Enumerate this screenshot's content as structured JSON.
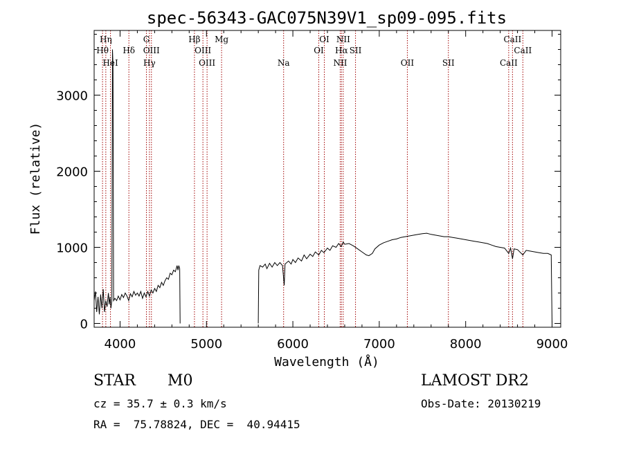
{
  "chart_data": {
    "type": "line",
    "title": "spec-56343-GAC075N39V1_sp09-095.fits",
    "xlabel": "Wavelength (Å)",
    "ylabel": "Flux (relative)",
    "xlim": [
      3700,
      9100
    ],
    "ylim": [
      -50,
      3850
    ],
    "xticks": [
      4000,
      5000,
      6000,
      7000,
      8000,
      9000
    ],
    "yticks": [
      0,
      1000,
      2000,
      3000
    ],
    "grid": false,
    "lines": [
      {
        "name": "Hη",
        "wl": 3835,
        "row": 0
      },
      {
        "name": "Hθ",
        "wl": 3797,
        "row": 1
      },
      {
        "name": "HeI",
        "wl": 3889,
        "row": 2
      },
      {
        "name": "Hδ",
        "wl": 4102,
        "row": 1
      },
      {
        "name": "G",
        "wl": 4305,
        "row": 0
      },
      {
        "name": "OIII",
        "wl": 4363,
        "row": 1
      },
      {
        "name": "Hγ",
        "wl": 4340,
        "row": 2
      },
      {
        "name": "Hβ",
        "wl": 4861,
        "row": 0
      },
      {
        "name": "OIII",
        "wl": 4959,
        "row": 1
      },
      {
        "name": "OIII",
        "wl": 5007,
        "row": 2
      },
      {
        "name": "Mg",
        "wl": 5175,
        "row": 0
      },
      {
        "name": "Na",
        "wl": 5893,
        "row": 2
      },
      {
        "name": "OI",
        "wl": 6364,
        "row": 0
      },
      {
        "name": "OI",
        "wl": 6300,
        "row": 1
      },
      {
        "name": "NII",
        "wl": 6583,
        "row": 0
      },
      {
        "name": "Hα",
        "wl": 6563,
        "row": 1
      },
      {
        "name": "SII",
        "wl": 6725,
        "row": 1
      },
      {
        "name": "NII",
        "wl": 6548,
        "row": 2
      },
      {
        "name": "OII",
        "wl": 7325,
        "row": 2
      },
      {
        "name": "SII",
        "wl": 7800,
        "row": 2
      },
      {
        "name": "CaII",
        "wl": 8542,
        "row": 0
      },
      {
        "name": "CaII",
        "wl": 8662,
        "row": 1
      },
      {
        "name": "CaII",
        "wl": 8498,
        "row": 2
      }
    ],
    "spectrum_segments": [
      [
        [
          3700,
          300
        ],
        [
          3715,
          420
        ],
        [
          3730,
          150
        ],
        [
          3745,
          350
        ],
        [
          3760,
          120
        ],
        [
          3775,
          380
        ],
        [
          3790,
          200
        ],
        [
          3805,
          450
        ],
        [
          3820,
          150
        ],
        [
          3835,
          300
        ],
        [
          3850,
          220
        ],
        [
          3865,
          400
        ],
        [
          3875,
          250
        ],
        [
          3885,
          350
        ],
        [
          3895,
          200
        ],
        [
          3905,
          320
        ],
        [
          3912,
          3600
        ],
        [
          3918,
          3420
        ],
        [
          3925,
          300
        ],
        [
          3940,
          330
        ],
        [
          3960,
          300
        ],
        [
          3980,
          360
        ],
        [
          4000,
          310
        ],
        [
          4020,
          380
        ],
        [
          4040,
          340
        ],
        [
          4060,
          400
        ],
        [
          4080,
          360
        ],
        [
          4100,
          300
        ],
        [
          4120,
          390
        ],
        [
          4140,
          350
        ],
        [
          4160,
          420
        ],
        [
          4180,
          370
        ],
        [
          4200,
          400
        ],
        [
          4220,
          360
        ],
        [
          4240,
          420
        ],
        [
          4260,
          330
        ],
        [
          4280,
          400
        ],
        [
          4300,
          350
        ],
        [
          4320,
          420
        ],
        [
          4340,
          360
        ],
        [
          4360,
          440
        ],
        [
          4380,
          400
        ],
        [
          4400,
          460
        ],
        [
          4420,
          420
        ],
        [
          4440,
          500
        ],
        [
          4460,
          470
        ],
        [
          4480,
          540
        ],
        [
          4500,
          500
        ],
        [
          4520,
          560
        ],
        [
          4540,
          600
        ],
        [
          4560,
          580
        ],
        [
          4580,
          660
        ],
        [
          4600,
          640
        ],
        [
          4620,
          700
        ],
        [
          4640,
          680
        ],
        [
          4660,
          760
        ],
        [
          4670,
          700
        ],
        [
          4680,
          760
        ],
        [
          4690,
          720
        ],
        [
          4695,
          0
        ]
      ],
      [
        [
          5600,
          0
        ],
        [
          5605,
          700
        ],
        [
          5620,
          760
        ],
        [
          5650,
          740
        ],
        [
          5680,
          780
        ],
        [
          5700,
          720
        ],
        [
          5730,
          790
        ],
        [
          5760,
          740
        ],
        [
          5790,
          800
        ],
        [
          5820,
          760
        ],
        [
          5850,
          800
        ],
        [
          5880,
          760
        ],
        [
          5900,
          500
        ],
        [
          5910,
          780
        ],
        [
          5950,
          820
        ],
        [
          5980,
          780
        ],
        [
          6000,
          840
        ],
        [
          6030,
          800
        ],
        [
          6060,
          860
        ],
        [
          6100,
          820
        ],
        [
          6130,
          900
        ],
        [
          6160,
          850
        ],
        [
          6200,
          910
        ],
        [
          6230,
          880
        ],
        [
          6260,
          940
        ],
        [
          6300,
          900
        ],
        [
          6330,
          960
        ],
        [
          6360,
          930
        ],
        [
          6400,
          990
        ],
        [
          6430,
          960
        ],
        [
          6460,
          1020
        ],
        [
          6500,
          1000
        ],
        [
          6530,
          1050
        ],
        [
          6560,
          1010
        ],
        [
          6583,
          1070
        ],
        [
          6600,
          1040
        ],
        [
          6650,
          1050
        ],
        [
          6700,
          1020
        ],
        [
          6750,
          980
        ],
        [
          6800,
          940
        ],
        [
          6850,
          900
        ],
        [
          6880,
          890
        ],
        [
          6920,
          920
        ],
        [
          6950,
          980
        ],
        [
          7000,
          1030
        ],
        [
          7050,
          1060
        ],
        [
          7100,
          1080
        ],
        [
          7150,
          1100
        ],
        [
          7200,
          1110
        ],
        [
          7250,
          1130
        ],
        [
          7300,
          1140
        ],
        [
          7350,
          1150
        ],
        [
          7400,
          1160
        ],
        [
          7450,
          1170
        ],
        [
          7500,
          1180
        ],
        [
          7550,
          1185
        ],
        [
          7600,
          1170
        ],
        [
          7650,
          1160
        ],
        [
          7700,
          1150
        ],
        [
          7750,
          1140
        ],
        [
          7800,
          1140
        ],
        [
          7850,
          1130
        ],
        [
          7900,
          1120
        ],
        [
          7950,
          1110
        ],
        [
          8000,
          1100
        ],
        [
          8050,
          1090
        ],
        [
          8100,
          1080
        ],
        [
          8150,
          1070
        ],
        [
          8200,
          1060
        ],
        [
          8250,
          1050
        ],
        [
          8300,
          1030
        ],
        [
          8350,
          1010
        ],
        [
          8400,
          1000
        ],
        [
          8450,
          990
        ],
        [
          8498,
          920
        ],
        [
          8520,
          990
        ],
        [
          8542,
          850
        ],
        [
          8560,
          980
        ],
        [
          8600,
          970
        ],
        [
          8662,
          900
        ],
        [
          8700,
          960
        ],
        [
          8750,
          950
        ],
        [
          8800,
          940
        ],
        [
          8850,
          930
        ],
        [
          8900,
          920
        ],
        [
          8950,
          920
        ],
        [
          8990,
          900
        ],
        [
          9000,
          0
        ]
      ]
    ]
  },
  "info": {
    "class_label": "STAR",
    "subclass_label": "M0",
    "survey_label": "LAMOST DR2",
    "cz_text": "cz = 35.7 ± 0.3 km/s",
    "obs_date_text": "Obs-Date: 20130219",
    "coords_text": "RA =  75.78824, DEC =  40.94415"
  }
}
